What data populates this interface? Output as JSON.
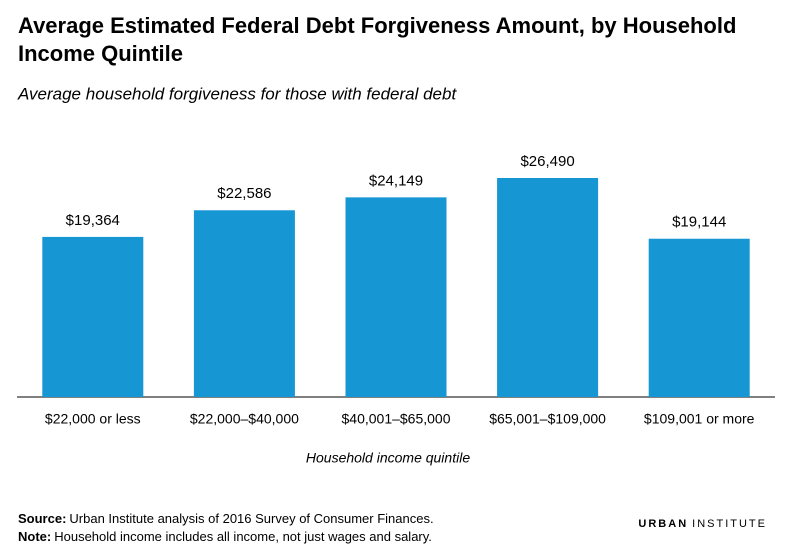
{
  "chart_data": {
    "type": "bar",
    "title": "Average Estimated Federal Debt Forgiveness Amount, by Household Income Quintile",
    "subtitle": "Average household forgiveness for those with federal debt",
    "x_label": "Household income quintile",
    "categories": [
      "$22,000 or less",
      "$22,000–$40,000",
      "$40,001–$65,000",
      "$65,001–$109,000",
      "$109,001 or more"
    ],
    "values": [
      19364,
      22586,
      24149,
      26490,
      19144
    ],
    "value_labels": [
      "$19,364",
      "$22,586",
      "$24,149",
      "$26,490",
      "$19,144"
    ],
    "color": "#1696d2"
  },
  "footer": {
    "source_label": "Source:",
    "source": "Urban Institute analysis of 2016 Survey of Consumer Finances.",
    "note_label": "Note:",
    "note": "Household income includes all income, not just wages and salary.",
    "logo_bold": "URBAN",
    "logo_light": "INSTITUTE"
  }
}
